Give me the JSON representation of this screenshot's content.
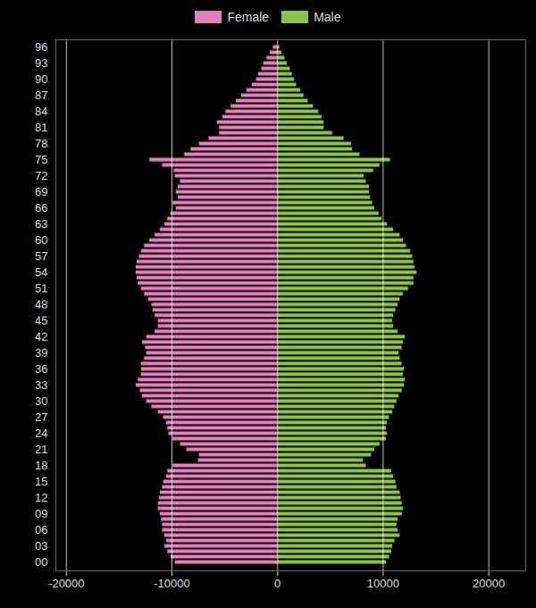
{
  "chart_data": {
    "type": "bar",
    "orientation": "horizontal",
    "categories": [
      "00",
      null,
      null,
      "03",
      null,
      null,
      "06",
      null,
      null,
      "09",
      null,
      null,
      "12",
      null,
      null,
      "15",
      null,
      null,
      "18",
      null,
      null,
      "21",
      null,
      null,
      "24",
      null,
      null,
      "27",
      null,
      null,
      "30",
      null,
      null,
      "33",
      null,
      null,
      "36",
      null,
      null,
      "39",
      null,
      null,
      "42",
      null,
      null,
      "45",
      null,
      null,
      "48",
      null,
      null,
      "51",
      null,
      null,
      "54",
      null,
      null,
      "57",
      null,
      null,
      "60",
      null,
      null,
      "63",
      null,
      null,
      "66",
      null,
      null,
      "69",
      null,
      null,
      "72",
      null,
      null,
      "75",
      null,
      null,
      "78",
      null,
      null,
      "81",
      null,
      null,
      "84",
      null,
      null,
      "87",
      null,
      null,
      "90",
      null,
      null,
      "93",
      null,
      null,
      "96"
    ],
    "series": [
      {
        "name": "Female",
        "color": "#e27fba",
        "values": [
          -9700,
          -10100,
          -10400,
          -10700,
          -10500,
          -10700,
          -10900,
          -10900,
          -11000,
          -11100,
          -11300,
          -11300,
          -11200,
          -11100,
          -10900,
          -10800,
          -10500,
          -10400,
          -9900,
          -7500,
          -7400,
          -8600,
          -9200,
          -9900,
          -10300,
          -10400,
          -10500,
          -10800,
          -11300,
          -11900,
          -12400,
          -12800,
          -13000,
          -13400,
          -13200,
          -12900,
          -12900,
          -12900,
          -12600,
          -12400,
          -12500,
          -12800,
          -12400,
          -11600,
          -11300,
          -11300,
          -11600,
          -11800,
          -11900,
          -12200,
          -12600,
          -12900,
          -13200,
          -13300,
          -13400,
          -13400,
          -13300,
          -13100,
          -12900,
          -12600,
          -12100,
          -11600,
          -11100,
          -10700,
          -10400,
          -10100,
          -9600,
          -9900,
          -9400,
          -9600,
          -9400,
          -9200,
          -9700,
          -9800,
          -10900,
          -12100,
          -8800,
          -8200,
          -7400,
          -6500,
          -5500,
          -5500,
          -5700,
          -5200,
          -4900,
          -4400,
          -3900,
          -3400,
          -2900,
          -2400,
          -2000,
          -1800,
          -1500,
          -1300,
          -1000,
          -700,
          -400
        ]
      },
      {
        "name": "Male",
        "color": "#8bc34a",
        "values": [
          10300,
          10600,
          10800,
          10900,
          11100,
          11600,
          11400,
          11300,
          11400,
          11800,
          11900,
          11800,
          11700,
          11600,
          11300,
          11200,
          11000,
          10800,
          8400,
          8100,
          8900,
          9200,
          9700,
          10300,
          10400,
          10300,
          10400,
          10600,
          10900,
          11100,
          11300,
          11500,
          11800,
          12000,
          12100,
          11900,
          12000,
          11800,
          11600,
          11500,
          11800,
          11900,
          12100,
          11400,
          11000,
          10900,
          11000,
          11200,
          11400,
          11600,
          11900,
          12400,
          12900,
          12900,
          13200,
          13000,
          12900,
          12800,
          12600,
          12200,
          11900,
          11600,
          11000,
          10400,
          9900,
          9600,
          9200,
          9000,
          8800,
          8700,
          8700,
          8400,
          8200,
          9100,
          9700,
          10700,
          7800,
          7100,
          7000,
          6300,
          5200,
          4400,
          4400,
          4200,
          3900,
          3400,
          2900,
          2500,
          2200,
          1800,
          1600,
          1400,
          1200,
          900,
          700,
          400,
          200
        ]
      }
    ],
    "xlim": [
      -21000,
      23500
    ],
    "xticks": [
      -20000,
      -10000,
      0,
      10000,
      20000
    ],
    "grid": true,
    "legend": "top"
  }
}
